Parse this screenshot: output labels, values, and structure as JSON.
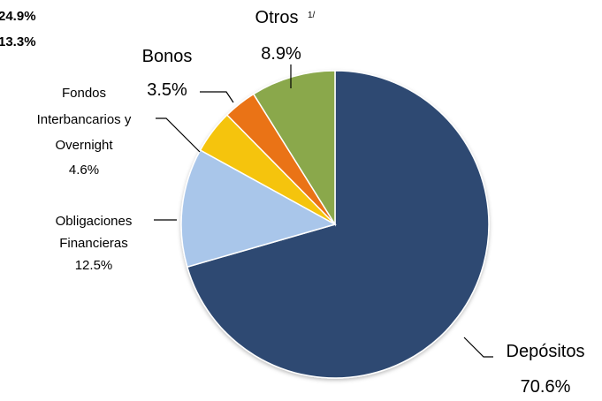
{
  "corner_values": [
    "24.9%",
    "13.3%"
  ],
  "chart_data": {
    "type": "pie",
    "slices": [
      {
        "label": "Depósitos",
        "value": 70.6,
        "value_label": "70.6%",
        "color": "#2d4a72"
      },
      {
        "label": "Obligaciones Financieras",
        "value": 12.5,
        "value_label": "12.5%",
        "color": "#a9c6ea"
      },
      {
        "label": "Fondos Interbancarios y Overnight",
        "value": 4.6,
        "value_label": "4.6%",
        "color": "#f5c40a"
      },
      {
        "label": "Bonos",
        "value": 3.5,
        "value_label": "3.5%",
        "color": "#ea7316"
      },
      {
        "label": "Otros",
        "value": 8.9,
        "value_label": "8.9%",
        "color": "#8aa84c",
        "footnote": "1/"
      }
    ],
    "label_lines": {
      "depositos": [
        "Depósitos",
        "70.6%"
      ],
      "obligaciones": [
        "Obligaciones",
        "Financieras",
        "12.5%"
      ],
      "fondos": [
        "Fondos",
        "Interbancarios y",
        "Overnight",
        "4.6%"
      ],
      "bonos": [
        "Bonos",
        "3.5%"
      ],
      "otros": [
        "Otros",
        "8.9%"
      ]
    }
  }
}
